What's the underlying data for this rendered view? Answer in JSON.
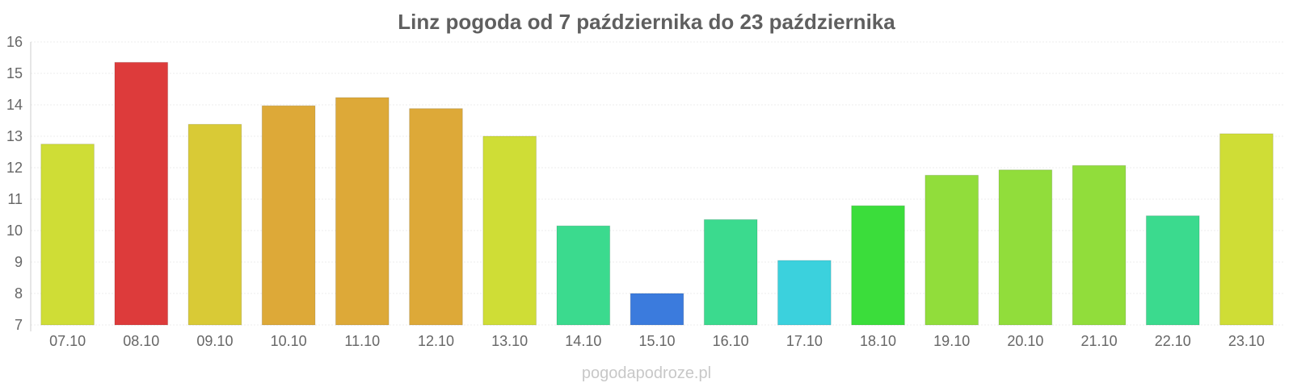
{
  "chart_data": {
    "type": "bar",
    "title": "Linz pogoda od 7 października do 23 października",
    "xlabel": "",
    "ylabel": "",
    "ylim": [
      7,
      16
    ],
    "yticks": [
      7,
      8,
      9,
      10,
      11,
      12,
      13,
      14,
      15,
      16
    ],
    "grid": true,
    "legend": "none",
    "categories": [
      "07.10",
      "08.10",
      "09.10",
      "10.10",
      "11.10",
      "12.10",
      "13.10",
      "14.10",
      "15.10",
      "16.10",
      "17.10",
      "18.10",
      "19.10",
      "20.10",
      "21.10",
      "22.10",
      "23.10"
    ],
    "values": [
      12.75,
      15.35,
      13.38,
      13.97,
      14.23,
      13.88,
      13.0,
      10.15,
      8.0,
      10.35,
      9.05,
      10.79,
      11.76,
      11.93,
      12.07,
      10.47,
      13.08
    ],
    "colors": [
      "#cddc30",
      "#dc3535",
      "#d8c82f",
      "#dca632",
      "#dca632",
      "#dca632",
      "#cddc30",
      "#35d98a",
      "#3577dc",
      "#35d98a",
      "#35cfdc",
      "#35dc35",
      "#8ddc35",
      "#8ddc35",
      "#8ddc35",
      "#35d98a",
      "#cddc30"
    ]
  },
  "watermark": "pogodapodroze.pl"
}
